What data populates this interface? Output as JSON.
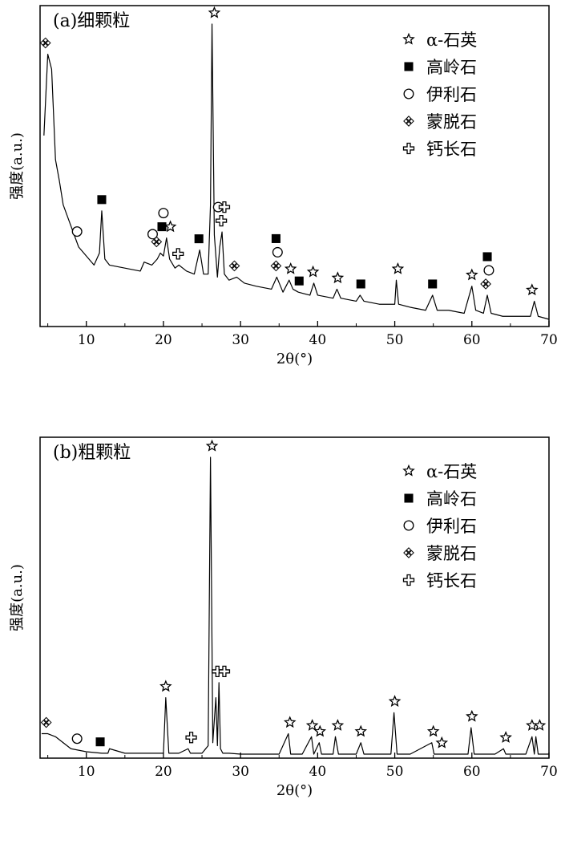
{
  "chart_data": [
    {
      "type": "line",
      "panel_label": "(a)细颗粒",
      "xlabel": "2θ(°)",
      "ylabel": "强度(a.u.)",
      "xlim": [
        4,
        70
      ],
      "xticks": [
        10,
        20,
        30,
        40,
        50,
        60,
        70
      ],
      "y_unit": "arbitrary",
      "legend_position": "top-right",
      "legend": [
        {
          "symbol": "star",
          "label": "α-石英"
        },
        {
          "symbol": "square",
          "label": "高岭石"
        },
        {
          "symbol": "circle",
          "label": "伊利石"
        },
        {
          "symbol": "diamond",
          "label": "蒙脱石"
        },
        {
          "symbol": "cross",
          "label": "钙长石"
        }
      ],
      "series": [
        {
          "x": [
            4.5,
            5.0,
            5.5,
            6.0,
            6.5,
            7.0,
            8.0,
            9.0,
            10.0,
            11.0,
            11.7,
            12.0,
            12.4,
            13.0,
            15.0,
            17.0,
            17.5,
            18.5,
            19.2,
            19.6,
            20.0,
            20.4,
            20.8,
            21.5,
            22.0,
            23.0,
            24.0,
            24.7,
            25.2,
            25.8,
            26.1,
            26.3,
            26.6,
            27.0,
            27.3,
            27.6,
            27.9,
            28.5,
            29.5,
            30.5,
            32.0,
            34.0,
            34.7,
            35.5,
            36.3,
            36.8,
            37.5,
            39.0,
            39.5,
            40.0,
            42.0,
            42.5,
            43.0,
            45.0,
            45.5,
            46.0,
            48.0,
            50.0,
            50.2,
            50.5,
            52.0,
            54.0,
            54.9,
            55.5,
            57.0,
            59.0,
            60.0,
            60.5,
            61.5,
            62.0,
            62.5,
            64.0,
            66.0,
            67.6,
            68.1,
            68.6,
            70.0
          ],
          "y": [
            63,
            90,
            85,
            55,
            48,
            40,
            33,
            26,
            23,
            20,
            24,
            38,
            22,
            20,
            19,
            18,
            21,
            20,
            22,
            24,
            23,
            29,
            22,
            19,
            20,
            18,
            17,
            25,
            17,
            17,
            40,
            100,
            30,
            16,
            26,
            31,
            17,
            15,
            16,
            14,
            13,
            12,
            16,
            11,
            15,
            12,
            11,
            10,
            14,
            10,
            9,
            12,
            9,
            8,
            10,
            8,
            7,
            7,
            15,
            7,
            6,
            5,
            10,
            5,
            5,
            4,
            13,
            5,
            4,
            10,
            4,
            3,
            3,
            3,
            8,
            3,
            2
          ]
        }
      ],
      "annotations": [
        {
          "x": 4.7,
          "label": "diamond"
        },
        {
          "x": 26.6,
          "label": "star"
        },
        {
          "x": 27.1,
          "label": "circle"
        },
        {
          "x": 8.8,
          "label": "circle"
        },
        {
          "x": 12.0,
          "label": "square"
        },
        {
          "x": 19.1,
          "label": "diamond"
        },
        {
          "x": 19.8,
          "label": "square"
        },
        {
          "x": 20.0,
          "label": "circle"
        },
        {
          "x": 20.9,
          "label": "star"
        },
        {
          "x": 18.6,
          "label": "circle"
        },
        {
          "x": 24.6,
          "label": "square"
        },
        {
          "x": 21.9,
          "label": "cross"
        },
        {
          "x": 27.5,
          "label": "cross"
        },
        {
          "x": 27.9,
          "label": "cross"
        },
        {
          "x": 29.2,
          "label": "diamond"
        },
        {
          "x": 34.6,
          "label": "diamond"
        },
        {
          "x": 34.8,
          "label": "circle"
        },
        {
          "x": 34.6,
          "label": "square"
        },
        {
          "x": 36.5,
          "label": "star"
        },
        {
          "x": 37.6,
          "label": "square"
        },
        {
          "x": 39.4,
          "label": "star"
        },
        {
          "x": 42.6,
          "label": "star"
        },
        {
          "x": 45.6,
          "label": "square"
        },
        {
          "x": 50.4,
          "label": "star"
        },
        {
          "x": 54.9,
          "label": "square"
        },
        {
          "x": 60.0,
          "label": "star"
        },
        {
          "x": 61.8,
          "label": "diamond"
        },
        {
          "x": 62.2,
          "label": "circle"
        },
        {
          "x": 62.0,
          "label": "square"
        },
        {
          "x": 67.8,
          "label": "star"
        }
      ]
    },
    {
      "type": "line",
      "panel_label": "(b)粗颗粒",
      "xlabel": "2θ(°)",
      "ylabel": "强度(a.u.)",
      "xlim": [
        4,
        70
      ],
      "xticks": [
        10,
        20,
        30,
        40,
        50,
        60,
        70
      ],
      "y_unit": "arbitrary",
      "legend_position": "top-right",
      "legend": [
        {
          "symbol": "star",
          "label": "α-石英"
        },
        {
          "symbol": "square",
          "label": "高岭石"
        },
        {
          "symbol": "circle",
          "label": "伊利石"
        },
        {
          "symbol": "diamond",
          "label": "蒙脱石"
        },
        {
          "symbol": "cross",
          "label": "钙长石"
        }
      ],
      "series": [
        {
          "x": [
            4.2,
            5.0,
            6.0,
            7.0,
            8.0,
            10.0,
            12.0,
            12.8,
            13.0,
            15.0,
            18.0,
            20.0,
            20.3,
            20.7,
            22.0,
            23.2,
            23.5,
            25.0,
            25.8,
            26.1,
            26.4,
            26.8,
            27.0,
            27.2,
            27.4,
            27.7,
            28.5,
            30.0,
            35.0,
            36.2,
            36.5,
            38.0,
            39.2,
            39.5,
            40.2,
            40.5,
            42.0,
            42.3,
            42.7,
            45.0,
            45.6,
            46.0,
            49.5,
            49.9,
            50.3,
            52.0,
            54.8,
            55.1,
            55.5,
            56.0,
            59.5,
            59.9,
            60.3,
            63.0,
            64.1,
            64.4,
            67.0,
            67.8,
            68.1,
            68.3,
            68.6,
            70.0
          ],
          "y": [
            8,
            8,
            7,
            5,
            3,
            2,
            1.5,
            1.5,
            3,
            1.5,
            1.5,
            1.5,
            20,
            1.5,
            1.5,
            3,
            1.5,
            1.5,
            4,
            100,
            5,
            20,
            4,
            25,
            3,
            1.5,
            1.5,
            1.2,
            1.2,
            8,
            1.2,
            1.2,
            7,
            1.2,
            5,
            1.2,
            1.2,
            7,
            1.2,
            1.2,
            5,
            1.2,
            1.2,
            15,
            1.2,
            1.2,
            5,
            1.2,
            1.2,
            1.2,
            1.2,
            10,
            1.2,
            1.2,
            3,
            1.2,
            1.2,
            7,
            1.2,
            7,
            1.2,
            1.2
          ]
        }
      ],
      "annotations": [
        {
          "x": 4.8,
          "label": "diamond"
        },
        {
          "x": 8.8,
          "label": "circle"
        },
        {
          "x": 11.8,
          "label": "square"
        },
        {
          "x": 20.3,
          "label": "star"
        },
        {
          "x": 23.6,
          "label": "cross"
        },
        {
          "x": 26.3,
          "label": "star"
        },
        {
          "x": 27.0,
          "label": "cross"
        },
        {
          "x": 27.9,
          "label": "cross"
        },
        {
          "x": 36.4,
          "label": "star"
        },
        {
          "x": 39.3,
          "label": "star"
        },
        {
          "x": 40.3,
          "label": "star"
        },
        {
          "x": 42.6,
          "label": "star"
        },
        {
          "x": 45.6,
          "label": "star"
        },
        {
          "x": 50.0,
          "label": "star"
        },
        {
          "x": 55.0,
          "label": "star"
        },
        {
          "x": 56.1,
          "label": "star"
        },
        {
          "x": 60.0,
          "label": "star"
        },
        {
          "x": 64.4,
          "label": "star"
        },
        {
          "x": 67.8,
          "label": "star"
        },
        {
          "x": 68.8,
          "label": "star"
        }
      ]
    }
  ]
}
